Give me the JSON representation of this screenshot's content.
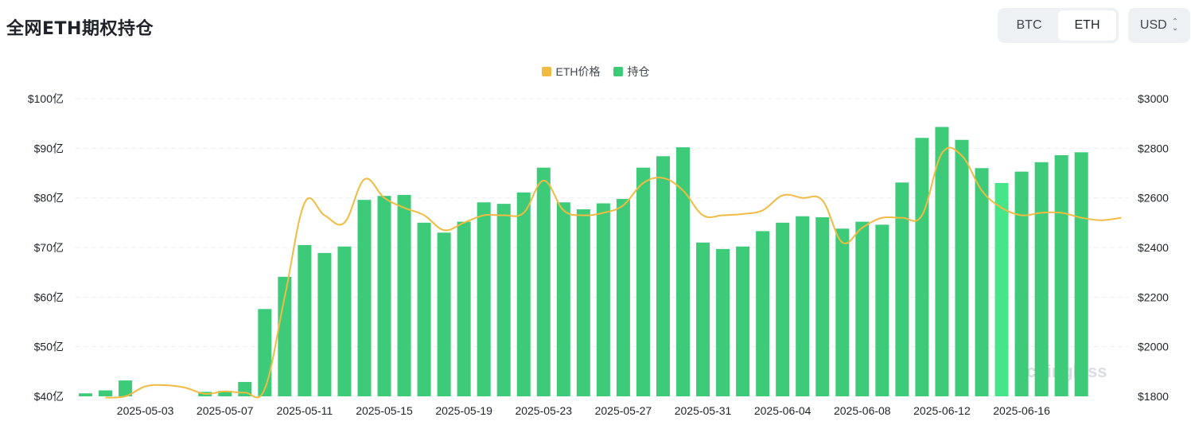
{
  "header": {
    "title": "全网ETH期权持仓",
    "tabs": [
      {
        "label": "BTC",
        "active": false
      },
      {
        "label": "ETH",
        "active": true
      }
    ],
    "currency": "USD"
  },
  "watermark": "coinglass",
  "colors": {
    "price": "#f0bb43",
    "oi": "#3ecb79",
    "oi_highlight": "#46e58a",
    "grid": "#eceef1"
  },
  "chart_data": {
    "type": "bar",
    "legend": [
      "ETH价格",
      "持仓"
    ],
    "legend_position": "top-center",
    "x_tick_labels": [
      "2025-05-03",
      "2025-05-07",
      "2025-05-11",
      "2025-05-15",
      "2025-05-19",
      "2025-05-23",
      "2025-05-27",
      "2025-05-31",
      "2025-06-04",
      "2025-06-08",
      "2025-06-12",
      "2025-06-16"
    ],
    "categories": [
      "2025-04-30",
      "2025-05-01",
      "2025-05-02",
      "2025-05-03",
      "2025-05-04",
      "2025-05-05",
      "2025-05-06",
      "2025-05-07",
      "2025-05-08",
      "2025-05-09",
      "2025-05-10",
      "2025-05-11",
      "2025-05-12",
      "2025-05-13",
      "2025-05-14",
      "2025-05-15",
      "2025-05-16",
      "2025-05-17",
      "2025-05-18",
      "2025-05-19",
      "2025-05-20",
      "2025-05-21",
      "2025-05-22",
      "2025-05-23",
      "2025-05-24",
      "2025-05-25",
      "2025-05-26",
      "2025-05-27",
      "2025-05-28",
      "2025-05-29",
      "2025-05-30",
      "2025-05-31",
      "2025-06-01",
      "2025-06-02",
      "2025-06-03",
      "2025-06-04",
      "2025-06-05",
      "2025-06-06",
      "2025-06-07",
      "2025-06-08",
      "2025-06-09",
      "2025-06-10",
      "2025-06-11",
      "2025-06-12",
      "2025-06-13",
      "2025-06-14",
      "2025-06-15",
      "2025-06-16",
      "2025-06-17",
      "2025-06-18",
      "2025-06-19",
      "2025-06-20",
      "2025-06-21"
    ],
    "series": [
      {
        "name": "持仓",
        "axis": "left",
        "unit": "亿 USD",
        "values": [
          40.6,
          41.2,
          43.2,
          39.9,
          39.7,
          39.6,
          40.9,
          41.1,
          42.9,
          57.6,
          64.1,
          70.5,
          68.9,
          70.2,
          79.6,
          80.4,
          80.6,
          75.0,
          73.0,
          75.2,
          79.1,
          78.8,
          81.1,
          86.1,
          79.1,
          77.7,
          78.9,
          79.8,
          86.1,
          88.4,
          90.2,
          71.0,
          69.7,
          70.2,
          73.3,
          75.0,
          76.3,
          76.1,
          73.8,
          75.2,
          74.6,
          83.1,
          92.1,
          94.3,
          91.7,
          86.0,
          83.0,
          85.3,
          87.2,
          88.6,
          89.2,
          null,
          null
        ],
        "highlight_index": 46
      },
      {
        "name": "ETH价格",
        "axis": "right",
        "unit": "USD",
        "values": [
          null,
          1795,
          1800,
          1840,
          1845,
          1835,
          1810,
          1820,
          1815,
          1830,
          2200,
          2580,
          2530,
          2500,
          2675,
          2600,
          2560,
          2530,
          2470,
          2500,
          2530,
          2530,
          2540,
          2670,
          2550,
          2530,
          2540,
          2570,
          2660,
          2680,
          2630,
          2530,
          2530,
          2535,
          2550,
          2610,
          2600,
          2590,
          2420,
          2480,
          2520,
          2520,
          2530,
          2780,
          2770,
          2630,
          2560,
          2530,
          2540,
          2540,
          2520,
          2510,
          2520
        ]
      }
    ],
    "y_left": {
      "ticks": [
        "$40亿",
        "$50亿",
        "$60亿",
        "$70亿",
        "$80亿",
        "$90亿",
        "$100亿"
      ],
      "range": [
        40,
        100
      ],
      "unit": "亿"
    },
    "y_right": {
      "ticks": [
        "$1800",
        "$2000",
        "$2200",
        "$2400",
        "$2600",
        "$2800",
        "$3000"
      ],
      "range": [
        1800,
        3000
      ]
    },
    "grid": true
  }
}
